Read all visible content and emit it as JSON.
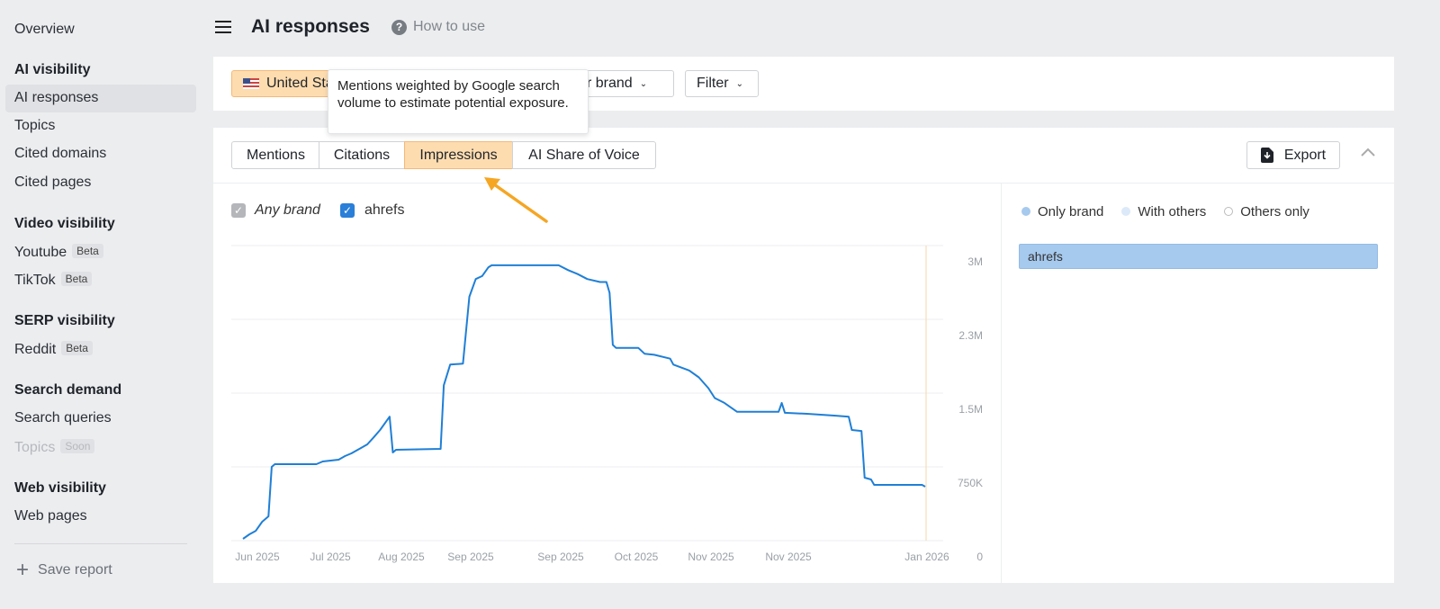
{
  "sidebar": {
    "overview": "Overview",
    "sections": [
      {
        "title": "AI visibility",
        "items": [
          {
            "label": "AI responses"
          },
          {
            "label": "Topics"
          },
          {
            "label": "Cited domains"
          },
          {
            "label": "Cited pages"
          }
        ]
      },
      {
        "title": "Video visibility",
        "items": [
          {
            "label": "Youtube",
            "badge": "Beta"
          },
          {
            "label": "TikTok",
            "badge": "Beta"
          }
        ]
      },
      {
        "title": "SERP visibility",
        "items": [
          {
            "label": "Reddit",
            "badge": "Beta"
          }
        ]
      },
      {
        "title": "Search demand",
        "items": [
          {
            "label": "Search queries"
          },
          {
            "label": "Topics",
            "badge": "Soon",
            "disabled": true
          }
        ]
      },
      {
        "title": "Web visibility",
        "items": [
          {
            "label": "Web pages"
          }
        ]
      }
    ],
    "active": "AI responses",
    "save_report": "Save report"
  },
  "header": {
    "title": "AI responses",
    "help": "How to use"
  },
  "filters": {
    "country": "United States",
    "brand": "Your brand",
    "filter": "Filter"
  },
  "tooltip": "Mentions weighted by Google search volume to estimate potential exposure.",
  "tabs": [
    {
      "label": "Mentions"
    },
    {
      "label": "Citations"
    },
    {
      "label": "Impressions",
      "active": true
    },
    {
      "label": "AI Share of Voice"
    }
  ],
  "export": "Export",
  "checkboxes": {
    "any_brand": "Any brand",
    "brand": "ahrefs"
  },
  "legend": {
    "only_brand": "Only brand",
    "with_others": "With others",
    "others_only": "Others only"
  },
  "brand_bar": "ahrefs",
  "colors": {
    "line": "#1f7fd6",
    "accent": "#fddcb0",
    "arrow": "#f5a623",
    "only_brand": "#a6c9ee",
    "with_others": "#dbe9f8"
  },
  "chart_data": {
    "type": "line",
    "xlim": [
      "2025-06-01",
      "2026-01-01"
    ],
    "ylim": [
      0,
      3000000
    ],
    "grid": true,
    "x_ticks": [
      "Jun 2025",
      "Jul 2025",
      "Aug 2025",
      "Sep 2025",
      "Sep 2025",
      "Oct 2025",
      "Nov 2025",
      "Nov 2025",
      "Jan 2026"
    ],
    "y_ticks": [
      "0",
      "750K",
      "1.5M",
      "2.3M",
      "3M"
    ],
    "series": [
      {
        "name": "ahrefs",
        "points": [
          [
            "2025-06-01",
            18000
          ],
          [
            "2025-06-03",
            64000
          ],
          [
            "2025-06-05",
            100000
          ],
          [
            "2025-06-07",
            192000
          ],
          [
            "2025-06-09",
            247000
          ],
          [
            "2025-06-10",
            750000
          ],
          [
            "2025-06-11",
            777000
          ],
          [
            "2025-06-24",
            777000
          ],
          [
            "2025-06-26",
            805000
          ],
          [
            "2025-07-01",
            823000
          ],
          [
            "2025-07-03",
            860000
          ],
          [
            "2025-07-05",
            887000
          ],
          [
            "2025-07-08",
            942000
          ],
          [
            "2025-07-10",
            979000
          ],
          [
            "2025-07-12",
            1050000
          ],
          [
            "2025-07-14",
            1125000
          ],
          [
            "2025-07-17",
            1260000
          ],
          [
            "2025-07-18",
            896000
          ],
          [
            "2025-07-19",
            924000
          ],
          [
            "2025-08-02",
            933000
          ],
          [
            "2025-08-03",
            1580000
          ],
          [
            "2025-08-05",
            1790000
          ],
          [
            "2025-08-09",
            1800000
          ],
          [
            "2025-08-11",
            2480000
          ],
          [
            "2025-08-13",
            2660000
          ],
          [
            "2025-08-15",
            2690000
          ],
          [
            "2025-08-17",
            2780000
          ],
          [
            "2025-08-18",
            2800000
          ],
          [
            "2025-09-08",
            2800000
          ],
          [
            "2025-09-11",
            2750000
          ],
          [
            "2025-09-14",
            2710000
          ],
          [
            "2025-09-17",
            2660000
          ],
          [
            "2025-09-21",
            2630000
          ],
          [
            "2025-09-23",
            2630000
          ],
          [
            "2025-09-24",
            2520000
          ],
          [
            "2025-09-25",
            1990000
          ],
          [
            "2025-09-26",
            1960000
          ],
          [
            "2025-10-03",
            1960000
          ],
          [
            "2025-10-05",
            1900000
          ],
          [
            "2025-10-08",
            1890000
          ],
          [
            "2025-10-13",
            1850000
          ],
          [
            "2025-10-14",
            1790000
          ],
          [
            "2025-10-19",
            1730000
          ],
          [
            "2025-10-22",
            1660000
          ],
          [
            "2025-10-25",
            1550000
          ],
          [
            "2025-10-27",
            1450000
          ],
          [
            "2025-10-30",
            1400000
          ],
          [
            "2025-11-03",
            1310000
          ],
          [
            "2025-11-08",
            1310000
          ],
          [
            "2025-11-16",
            1310000
          ],
          [
            "2025-11-17",
            1400000
          ],
          [
            "2025-11-18",
            1300000
          ],
          [
            "2025-11-25",
            1290000
          ],
          [
            "2025-12-04",
            1270000
          ],
          [
            "2025-12-08",
            1260000
          ],
          [
            "2025-12-09",
            1125000
          ],
          [
            "2025-12-12",
            1115000
          ],
          [
            "2025-12-13",
            640000
          ],
          [
            "2025-12-15",
            622000
          ],
          [
            "2025-12-16",
            567000
          ],
          [
            "2025-12-31",
            567000
          ],
          [
            "2026-01-01",
            549000
          ]
        ]
      }
    ]
  }
}
